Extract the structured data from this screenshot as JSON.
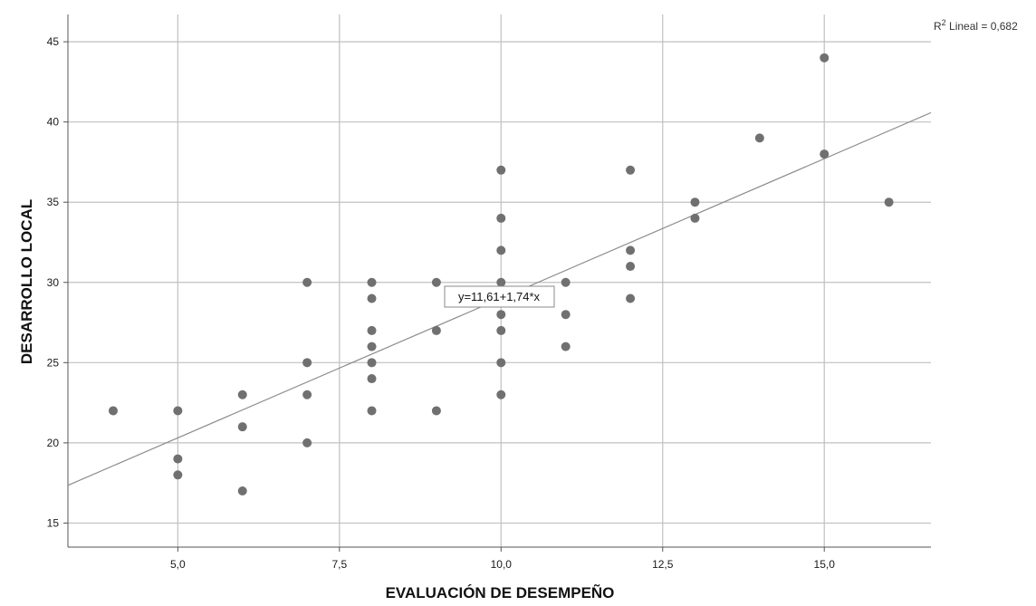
{
  "chart_data": {
    "type": "scatter",
    "xlabel": "EVALUACIÓN DE DESEMPEÑO",
    "ylabel": "DESARROLLO LOCAL",
    "xlim": [
      3.3,
      16.65
    ],
    "ylim": [
      13.5,
      46.7
    ],
    "x_ticks": [
      5,
      7.5,
      10,
      12.5,
      15
    ],
    "x_tick_labels": [
      "5,0",
      "7,5",
      "10,0",
      "12,5",
      "15,0"
    ],
    "y_ticks": [
      15,
      20,
      25,
      30,
      35,
      40,
      45
    ],
    "y_tick_labels": [
      "15",
      "20",
      "25",
      "30",
      "35",
      "40",
      "45"
    ],
    "grid": true,
    "points": [
      {
        "x": 4,
        "y": 22
      },
      {
        "x": 5,
        "y": 22
      },
      {
        "x": 5,
        "y": 19
      },
      {
        "x": 5,
        "y": 18
      },
      {
        "x": 6,
        "y": 23
      },
      {
        "x": 6,
        "y": 21
      },
      {
        "x": 6,
        "y": 17
      },
      {
        "x": 7,
        "y": 30
      },
      {
        "x": 7,
        "y": 25
      },
      {
        "x": 7,
        "y": 23
      },
      {
        "x": 7,
        "y": 20
      },
      {
        "x": 8,
        "y": 30
      },
      {
        "x": 8,
        "y": 29
      },
      {
        "x": 8,
        "y": 27
      },
      {
        "x": 8,
        "y": 26
      },
      {
        "x": 8,
        "y": 25
      },
      {
        "x": 8,
        "y": 24
      },
      {
        "x": 8,
        "y": 22
      },
      {
        "x": 9,
        "y": 30
      },
      {
        "x": 9,
        "y": 27
      },
      {
        "x": 9,
        "y": 22
      },
      {
        "x": 10,
        "y": 37
      },
      {
        "x": 10,
        "y": 34
      },
      {
        "x": 10,
        "y": 32
      },
      {
        "x": 10,
        "y": 30
      },
      {
        "x": 10,
        "y": 28
      },
      {
        "x": 10,
        "y": 27
      },
      {
        "x": 10,
        "y": 25
      },
      {
        "x": 10,
        "y": 23
      },
      {
        "x": 11,
        "y": 30
      },
      {
        "x": 11,
        "y": 28
      },
      {
        "x": 11,
        "y": 26
      },
      {
        "x": 12,
        "y": 37
      },
      {
        "x": 12,
        "y": 32
      },
      {
        "x": 12,
        "y": 31
      },
      {
        "x": 12,
        "y": 29
      },
      {
        "x": 13,
        "y": 35
      },
      {
        "x": 13,
        "y": 34
      },
      {
        "x": 14,
        "y": 39
      },
      {
        "x": 15,
        "y": 44
      },
      {
        "x": 15,
        "y": 38
      },
      {
        "x": 16,
        "y": 35
      }
    ],
    "fit_line": {
      "intercept": 11.61,
      "slope": 1.74
    },
    "fit_equation_label": "y=11,61+1,74*x",
    "r2_label": "R² Lineal = 0,682",
    "colors": {
      "point": "#707070",
      "fit_line": "#8c8c8c",
      "grid": "#c0c0c0",
      "axis": "#555555"
    }
  }
}
